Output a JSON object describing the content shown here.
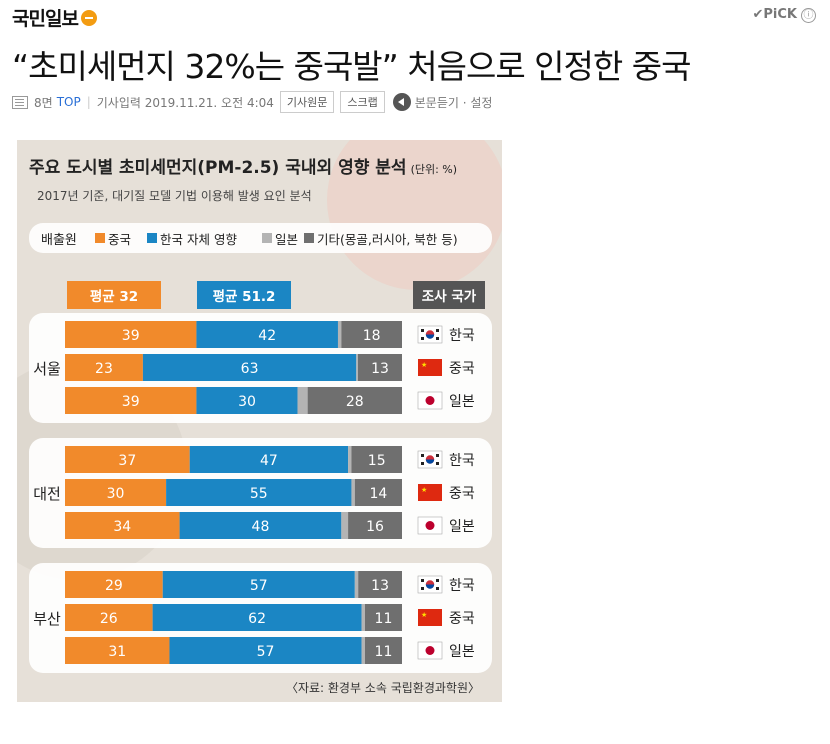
{
  "header": {
    "logo": "국민일보",
    "pick_label": "✔PiCK",
    "info_icon": "ⓘ"
  },
  "article": {
    "title": "“초미세먼지 32%는 중국발” 처음으로 인정한 중국",
    "page_label": "8면",
    "top_link": "TOP",
    "published": "기사입력 2019.11.21. 오전 4:04",
    "original_button": "기사원문",
    "scrap_button": "스크랩",
    "tts_label": "본문듣기 · 설정"
  },
  "chart_data": {
    "type": "bar",
    "title": "주요 도시별 초미세먼지(PM-2.5) 국내외 영향 분석",
    "title_unit": "(단위: %)",
    "subtitle": "2017년 기준, 대기질 모델 기법 이용해 발생 요인 분석",
    "legend_title": "배출원",
    "legend_position": "top",
    "series": [
      {
        "name": "중국",
        "color": "#f18a2b"
      },
      {
        "name": "한국 자체 영향",
        "color": "#1b86c4"
      },
      {
        "name": "일본",
        "color": "#b4b4b4"
      },
      {
        "name": "기타(몽골,러시아, 북한 등)",
        "color": "#6f6f6f"
      }
    ],
    "avg_china_label": "평균 32",
    "avg_korea_label": "평균 51.2",
    "country_header": "조사 국가",
    "cities": [
      {
        "name": "서울",
        "rows": [
          {
            "country": "한국",
            "flag": "korea-flag",
            "values": [
              39,
              42,
              1,
              18
            ],
            "labels": [
              "39",
              "42",
              "",
              "18"
            ]
          },
          {
            "country": "중국",
            "flag": "china-flag",
            "values": [
              23,
              63,
              0.5,
              13
            ],
            "labels": [
              "23",
              "63",
              "",
              "13"
            ]
          },
          {
            "country": "일본",
            "flag": "japan-flag",
            "values": [
              39,
              30,
              3,
              28
            ],
            "labels": [
              "39",
              "30",
              "",
              "28"
            ]
          }
        ]
      },
      {
        "name": "대전",
        "rows": [
          {
            "country": "한국",
            "flag": "korea-flag",
            "values": [
              37,
              47,
              1,
              15
            ],
            "labels": [
              "37",
              "47",
              "",
              "15"
            ]
          },
          {
            "country": "중국",
            "flag": "china-flag",
            "values": [
              30,
              55,
              1,
              14
            ],
            "labels": [
              "30",
              "55",
              "",
              "14"
            ]
          },
          {
            "country": "일본",
            "flag": "japan-flag",
            "values": [
              34,
              48,
              2,
              16
            ],
            "labels": [
              "34",
              "48",
              "",
              "16"
            ]
          }
        ]
      },
      {
        "name": "부산",
        "rows": [
          {
            "country": "한국",
            "flag": "korea-flag",
            "values": [
              29,
              57,
              1,
              13
            ],
            "labels": [
              "29",
              "57",
              "",
              "13"
            ]
          },
          {
            "country": "중국",
            "flag": "china-flag",
            "values": [
              26,
              62,
              1,
              11
            ],
            "labels": [
              "26",
              "62",
              "",
              "11"
            ]
          },
          {
            "country": "일본",
            "flag": "japan-flag",
            "values": [
              31,
              57,
              1,
              11
            ],
            "labels": [
              "31",
              "57",
              "",
              "11"
            ]
          }
        ]
      }
    ],
    "source": "〈자료: 환경부 소속 국립환경과학원〉"
  }
}
